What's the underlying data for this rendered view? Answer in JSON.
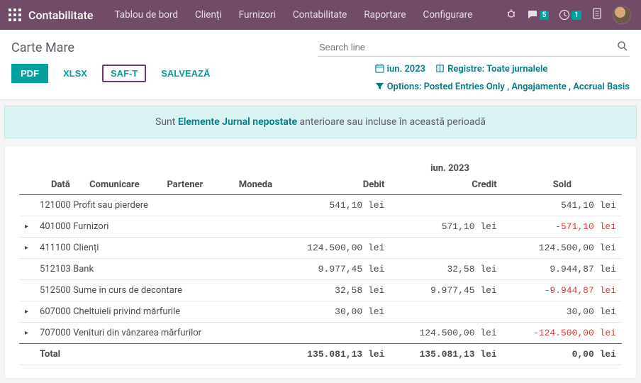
{
  "navbar": {
    "brand": "Contabilitate",
    "menu": [
      "Tablou de bord",
      "Clienți",
      "Furnizori",
      "Contabilitate",
      "Raportare",
      "Configurare"
    ],
    "messages_badge": "5",
    "activities_badge": "1"
  },
  "page": {
    "title": "Carte Mare",
    "search_placeholder": "Search line"
  },
  "buttons": {
    "pdf": "PDF",
    "xlsx": "XLSX",
    "saft": "SAF-T",
    "save": "SALVEAZĂ"
  },
  "filters": {
    "period": "iun. 2023",
    "journals_label": "Registre: Toate jurnalele",
    "options_label": "Options: Posted Entries Only , Angajamente , Accrual Basis"
  },
  "banner": {
    "prefix": "Sunt ",
    "link": "Elemente Jurnal nepostate",
    "suffix": " anterioare sau incluse în această perioadă"
  },
  "report": {
    "period_header": "iun. 2023",
    "columns": [
      "",
      "",
      "Dată",
      "Comunicare",
      "Partener",
      "Moneda",
      "Debit",
      "Credit",
      "Sold"
    ],
    "currency": "lei",
    "rows": [
      {
        "expandable": false,
        "account": "121000 Profit sau pierdere",
        "debit": "541,10",
        "credit": "",
        "balance": "541,10",
        "neg": false
      },
      {
        "expandable": true,
        "account": "401000 Furnizori",
        "debit": "",
        "credit": "571,10",
        "balance": "-571,10",
        "neg": true
      },
      {
        "expandable": true,
        "account": "411100 Clienți",
        "debit": "124.500,00",
        "credit": "",
        "balance": "124.500,00",
        "neg": false
      },
      {
        "expandable": false,
        "account": "512103 Bank",
        "debit": "9.977,45",
        "credit": "32,58",
        "balance": "9.944,87",
        "neg": false
      },
      {
        "expandable": false,
        "account": "512500 Sume în curs de decontare",
        "debit": "32,58",
        "credit": "9.977,45",
        "balance": "-9.944,87",
        "neg": true
      },
      {
        "expandable": true,
        "account": "607000 Cheltuieli privind mărfurile",
        "debit": "30,00",
        "credit": "",
        "balance": "30,00",
        "neg": false
      },
      {
        "expandable": true,
        "account": "707000 Venituri din vânzarea mărfurilor",
        "debit": "",
        "credit": "124.500,00",
        "balance": "-124.500,00",
        "neg": true
      }
    ],
    "total": {
      "label": "Total",
      "debit": "135.081,13",
      "credit": "135.081,13",
      "balance": "0,00"
    }
  },
  "colors": {
    "primary": "#714b67",
    "accent": "#00a09d",
    "negative": "#d23f3a"
  }
}
